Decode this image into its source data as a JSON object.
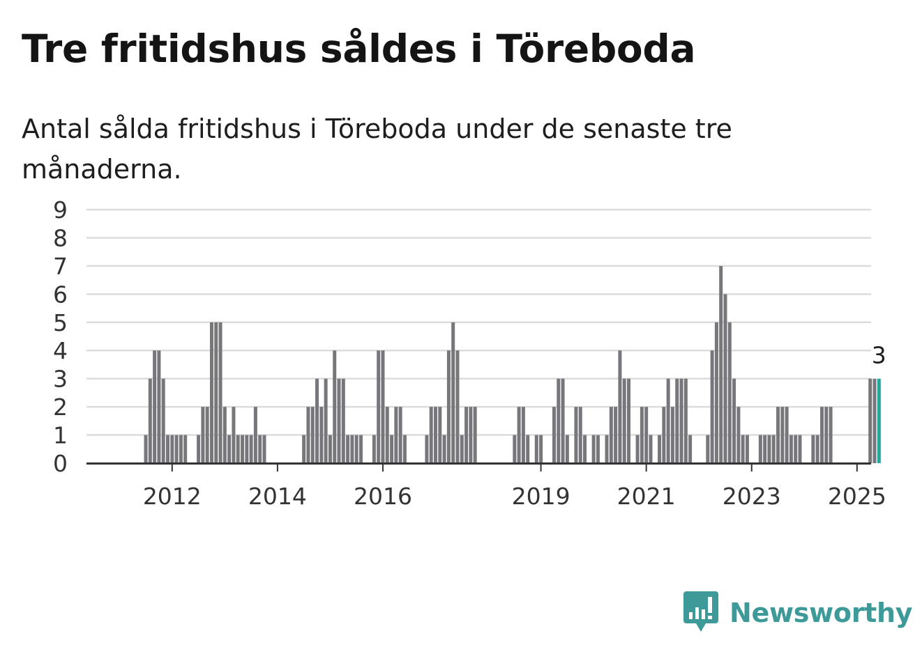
{
  "title": "Tre fritidshus såldes i Töreboda",
  "subtitle": "Antal sålda fritidshus i Töreboda under de senaste tre månaderna.",
  "brand": {
    "name": "Newsworthy",
    "icon": "bar-chart-speech-bubble-icon",
    "color": "#3d9a98"
  },
  "chart_data": {
    "type": "bar",
    "x_axis": "monthly (Jan 2011 – Jun 2025)",
    "xticks": [
      "2012",
      "2014",
      "2016",
      "2019",
      "2021",
      "2023",
      "2025"
    ],
    "yticks": [
      0,
      1,
      2,
      3,
      4,
      5,
      6,
      7,
      8,
      9
    ],
    "ylim": [
      0,
      9
    ],
    "grid": true,
    "bar_color": "#77767b",
    "highlight_color": "#2aa59b",
    "highlight_label": "3",
    "series": [
      {
        "values": [
          0,
          0,
          0,
          0,
          0,
          0,
          0,
          0,
          0,
          0,
          0,
          0,
          1,
          3,
          4,
          4,
          3,
          1,
          1,
          1,
          1,
          1,
          0,
          0,
          1,
          2,
          2,
          5,
          5,
          5,
          2,
          1,
          2,
          1,
          1,
          1,
          1,
          2,
          1,
          1,
          0,
          0,
          0,
          0,
          0,
          0,
          0,
          0,
          1,
          2,
          2,
          3,
          2,
          3,
          1,
          4,
          3,
          3,
          1,
          1,
          1,
          1,
          0,
          0,
          1,
          4,
          4,
          2,
          1,
          2,
          2,
          1,
          0,
          0,
          0,
          0,
          1,
          2,
          2,
          2,
          1,
          4,
          5,
          4,
          1,
          2,
          2,
          2,
          0,
          0,
          0,
          0,
          0,
          0,
          0,
          0,
          1,
          2,
          2,
          1,
          0,
          1,
          1,
          0,
          0,
          2,
          3,
          3,
          1,
          0,
          2,
          2,
          1,
          0,
          1,
          1,
          0,
          1,
          2,
          2,
          4,
          3,
          3,
          0,
          1,
          2,
          2,
          1,
          0,
          1,
          2,
          3,
          2,
          3,
          3,
          3,
          1,
          0,
          0,
          0,
          1,
          4,
          5,
          7,
          6,
          5,
          3,
          2,
          1,
          1,
          0,
          0,
          1,
          1,
          1,
          1,
          2,
          2,
          2,
          1,
          1,
          1,
          0,
          0,
          1,
          1,
          2,
          2,
          2,
          0,
          0,
          0,
          0,
          0,
          0,
          0,
          0,
          3,
          3,
          3
        ]
      }
    ]
  }
}
